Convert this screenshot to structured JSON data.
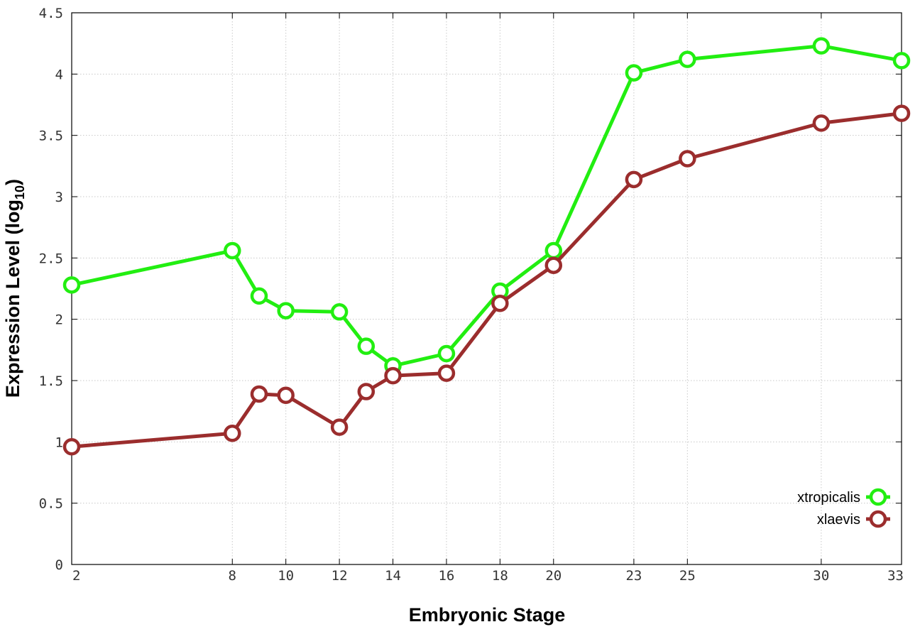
{
  "chart_data": {
    "type": "line",
    "xlabel": "Embryonic Stage",
    "ylabel_main": "Expression Level (log",
    "ylabel_sub": "10",
    "ylabel_close": ")",
    "x_ticks": [
      2,
      8,
      10,
      12,
      14,
      16,
      18,
      20,
      23,
      25,
      30,
      33
    ],
    "y_ticks": [
      "0",
      "0.5",
      "1",
      "1.5",
      "2",
      "2.5",
      "3",
      "3.5",
      "4",
      "4.5"
    ],
    "xlim": [
      2,
      33
    ],
    "ylim": [
      0,
      4.5
    ],
    "grid": true,
    "legend_placement": "bottom-right",
    "series": [
      {
        "name": "xtropicalis",
        "color": "#22ee11",
        "x": [
          2,
          8,
          9,
          10,
          12,
          13,
          14,
          16,
          18,
          20,
          23,
          25,
          30,
          33
        ],
        "values": [
          2.28,
          2.56,
          2.19,
          2.07,
          2.06,
          1.78,
          1.62,
          1.72,
          2.23,
          2.56,
          4.01,
          4.12,
          4.23,
          4.11
        ]
      },
      {
        "name": "xlaevis",
        "color": "#9b2d2d",
        "x": [
          2,
          8,
          9,
          10,
          12,
          13,
          14,
          16,
          18,
          20,
          23,
          25,
          30,
          33
        ],
        "values": [
          0.96,
          1.07,
          1.39,
          1.38,
          1.12,
          1.41,
          1.54,
          1.56,
          2.13,
          2.44,
          3.14,
          3.31,
          3.6,
          3.68
        ]
      }
    ]
  }
}
